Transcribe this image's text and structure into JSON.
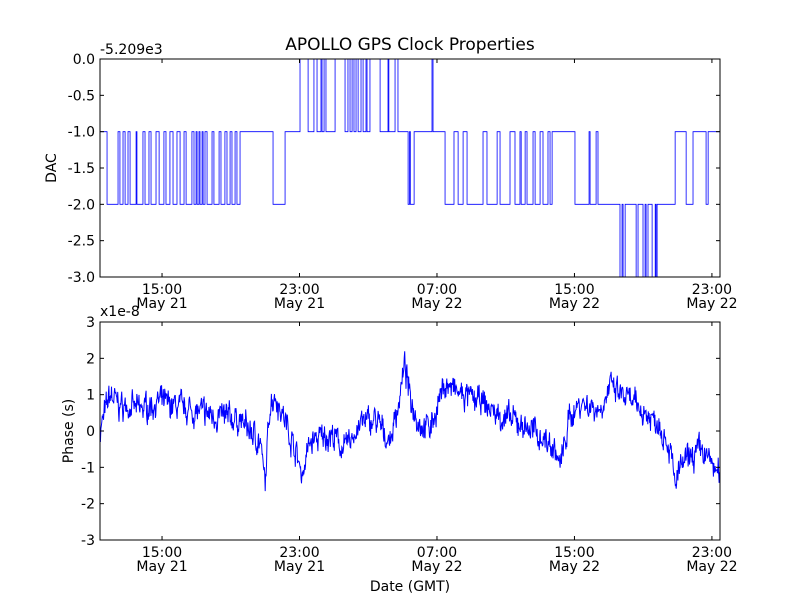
{
  "chart_data": [
    {
      "type": "line",
      "title": "APOLLO GPS Clock Properties",
      "ylabel": "DAC",
      "xlabel": "",
      "offset_label": "-5.209e3",
      "ylim": [
        -3.0,
        0.0
      ],
      "xlim_hours_since_may21": [
        11.39,
        47.47
      ],
      "yticks": [
        {
          "v": 0.0,
          "label": "0.0"
        },
        {
          "v": -0.5,
          "label": "-0.5"
        },
        {
          "v": -1.0,
          "label": "-1.0"
        },
        {
          "v": -1.5,
          "label": "-1.5"
        },
        {
          "v": -2.0,
          "label": "-2.0"
        },
        {
          "v": -2.5,
          "label": "-2.5"
        },
        {
          "v": -3.0,
          "label": "-3.0"
        }
      ],
      "xticks": [
        {
          "h": 15,
          "time": "15:00",
          "date": "May 21"
        },
        {
          "h": 23,
          "time": "23:00",
          "date": "May 21"
        },
        {
          "h": 31,
          "time": "07:00",
          "date": "May 22"
        },
        {
          "h": 39,
          "time": "15:00",
          "date": "May 22"
        },
        {
          "h": 47,
          "time": "23:00",
          "date": "May 22"
        }
      ],
      "series_color": "#0000ff",
      "step_transitions": [
        [
          11.39,
          -1
        ],
        [
          11.8,
          -2
        ],
        [
          12.44,
          -1
        ],
        [
          12.55,
          -2
        ],
        [
          12.73,
          -1
        ],
        [
          12.85,
          -2
        ],
        [
          13.02,
          -1
        ],
        [
          13.14,
          -2
        ],
        [
          13.49,
          -1
        ],
        [
          13.54,
          -2
        ],
        [
          13.89,
          -1
        ],
        [
          14.01,
          -2
        ],
        [
          14.24,
          -1
        ],
        [
          14.36,
          -2
        ],
        [
          14.65,
          -1
        ],
        [
          14.83,
          -2
        ],
        [
          15.11,
          -1
        ],
        [
          15.23,
          -2
        ],
        [
          15.46,
          -1
        ],
        [
          15.64,
          -2
        ],
        [
          15.87,
          -1
        ],
        [
          16.05,
          -2
        ],
        [
          16.28,
          -1
        ],
        [
          16.4,
          -2
        ],
        [
          16.74,
          -1
        ],
        [
          16.86,
          -2
        ],
        [
          16.98,
          -1
        ],
        [
          17.04,
          -2
        ],
        [
          17.15,
          -1
        ],
        [
          17.21,
          -2
        ],
        [
          17.33,
          -1
        ],
        [
          17.39,
          -2
        ],
        [
          17.5,
          -1
        ],
        [
          17.62,
          -2
        ],
        [
          17.91,
          -1
        ],
        [
          18.02,
          -2
        ],
        [
          18.32,
          -1
        ],
        [
          18.43,
          -2
        ],
        [
          18.66,
          -1
        ],
        [
          18.78,
          -2
        ],
        [
          18.96,
          -1
        ],
        [
          19.07,
          -2
        ],
        [
          19.25,
          -1
        ],
        [
          19.36,
          -2
        ],
        [
          19.54,
          -1
        ],
        [
          21.46,
          -2
        ],
        [
          22.16,
          -1
        ],
        [
          23.03,
          0
        ],
        [
          23.5,
          -1
        ],
        [
          23.84,
          0
        ],
        [
          24.02,
          -1
        ],
        [
          24.25,
          0
        ],
        [
          24.31,
          -1
        ],
        [
          24.43,
          0
        ],
        [
          24.54,
          -1
        ],
        [
          25.07,
          0
        ],
        [
          25.65,
          -1
        ],
        [
          25.82,
          0
        ],
        [
          25.94,
          -1
        ],
        [
          26.06,
          0
        ],
        [
          26.17,
          -1
        ],
        [
          26.29,
          0
        ],
        [
          26.41,
          -1
        ],
        [
          26.58,
          0
        ],
        [
          26.7,
          -1
        ],
        [
          26.87,
          0
        ],
        [
          26.93,
          -1
        ],
        [
          27.1,
          0
        ],
        [
          27.69,
          -1
        ],
        [
          28.15,
          0
        ],
        [
          28.2,
          -1
        ],
        [
          28.56,
          0
        ],
        [
          28.73,
          -1
        ],
        [
          29.32,
          -2
        ],
        [
          29.4,
          -1
        ],
        [
          29.45,
          -2
        ],
        [
          29.67,
          -1
        ],
        [
          30.71,
          0
        ],
        [
          30.77,
          -1
        ],
        [
          31.47,
          -2
        ],
        [
          31.99,
          -1
        ],
        [
          32.23,
          -2
        ],
        [
          32.52,
          -1
        ],
        [
          32.75,
          -2
        ],
        [
          33.68,
          -1
        ],
        [
          33.91,
          -2
        ],
        [
          34.5,
          -1
        ],
        [
          34.67,
          -2
        ],
        [
          35.25,
          -1
        ],
        [
          35.54,
          -2
        ],
        [
          35.83,
          -1
        ],
        [
          35.9,
          -2
        ],
        [
          36.13,
          -1
        ],
        [
          36.24,
          -2
        ],
        [
          36.59,
          -1
        ],
        [
          36.71,
          -2
        ],
        [
          37.0,
          -1
        ],
        [
          37.17,
          -2
        ],
        [
          37.46,
          -1
        ],
        [
          37.58,
          -2
        ],
        [
          37.7,
          -1
        ],
        [
          39.03,
          -2
        ],
        [
          39.85,
          -1
        ],
        [
          39.91,
          -2
        ],
        [
          40.26,
          -1
        ],
        [
          40.37,
          -2
        ],
        [
          41.65,
          -3
        ],
        [
          41.77,
          -2
        ],
        [
          41.83,
          -3
        ],
        [
          41.95,
          -2
        ],
        [
          42.59,
          -3
        ],
        [
          42.7,
          -2
        ],
        [
          42.99,
          -3
        ],
        [
          43.11,
          -2
        ],
        [
          43.17,
          -3
        ],
        [
          43.28,
          -2
        ],
        [
          43.52,
          -3
        ],
        [
          43.7,
          -2
        ],
        [
          43.75,
          -3
        ],
        [
          43.81,
          -2
        ],
        [
          44.86,
          -1
        ],
        [
          45.5,
          -2
        ],
        [
          45.9,
          -1
        ],
        [
          46.66,
          -2
        ],
        [
          46.78,
          -1
        ],
        [
          47.47,
          -1
        ]
      ]
    },
    {
      "type": "line",
      "title": "",
      "ylabel": "Phase (s)",
      "xlabel": "Date (GMT)",
      "offset_label": "x1e-8",
      "ylim": [
        -3,
        3
      ],
      "xlim_hours_since_may21": [
        11.39,
        47.47
      ],
      "yticks": [
        {
          "v": 3,
          "label": "3"
        },
        {
          "v": 2,
          "label": "2"
        },
        {
          "v": 1,
          "label": "1"
        },
        {
          "v": 0,
          "label": "0"
        },
        {
          "v": -1,
          "label": "-1"
        },
        {
          "v": -2,
          "label": "-2"
        },
        {
          "v": -3,
          "label": "-3"
        }
      ],
      "xticks": [
        {
          "h": 15,
          "time": "15:00",
          "date": "May 21"
        },
        {
          "h": 23,
          "time": "23:00",
          "date": "May 21"
        },
        {
          "h": 31,
          "time": "07:00",
          "date": "May 22"
        },
        {
          "h": 39,
          "time": "15:00",
          "date": "May 22"
        },
        {
          "h": 47,
          "time": "23:00",
          "date": "May 22"
        }
      ],
      "series_color": "#0000ff",
      "noise_amplitude": 0.45,
      "trend": [
        [
          11.39,
          0
        ],
        [
          11.68,
          0.5
        ],
        [
          11.97,
          1.0
        ],
        [
          12.55,
          0.7
        ],
        [
          13.72,
          0.6
        ],
        [
          14.88,
          0.8
        ],
        [
          17.21,
          0.5
        ],
        [
          19.54,
          0.3
        ],
        [
          20.7,
          -0.3
        ],
        [
          21.0,
          -1.5
        ],
        [
          21.28,
          0.8
        ],
        [
          21.58,
          1.0
        ],
        [
          22.16,
          0.3
        ],
        [
          22.74,
          -0.5
        ],
        [
          23.15,
          -1.2
        ],
        [
          23.61,
          -0.3
        ],
        [
          24.78,
          -0.1
        ],
        [
          25.65,
          -0.5
        ],
        [
          26.52,
          0.2
        ],
        [
          27.4,
          0.3
        ],
        [
          28.27,
          -0.3
        ],
        [
          28.85,
          1.0
        ],
        [
          29.14,
          1.8
        ],
        [
          29.43,
          0.9
        ],
        [
          30.01,
          0.2
        ],
        [
          30.6,
          0.1
        ],
        [
          31.47,
          1.3
        ],
        [
          32.34,
          1.0
        ],
        [
          33.51,
          0.8
        ],
        [
          34.67,
          0.4
        ],
        [
          35.83,
          0.2
        ],
        [
          37.0,
          -0.1
        ],
        [
          37.87,
          -0.5
        ],
        [
          38.16,
          -1.0
        ],
        [
          38.74,
          0.4
        ],
        [
          39.33,
          0.8
        ],
        [
          40.49,
          0.6
        ],
        [
          41.07,
          1.2
        ],
        [
          41.95,
          0.9
        ],
        [
          42.82,
          0.6
        ],
        [
          43.99,
          0.2
        ],
        [
          44.57,
          -0.5
        ],
        [
          44.86,
          -1.5
        ],
        [
          45.15,
          -1.0
        ],
        [
          46.32,
          -0.5
        ],
        [
          46.9,
          -0.8
        ],
        [
          47.47,
          -1.3
        ]
      ]
    }
  ]
}
